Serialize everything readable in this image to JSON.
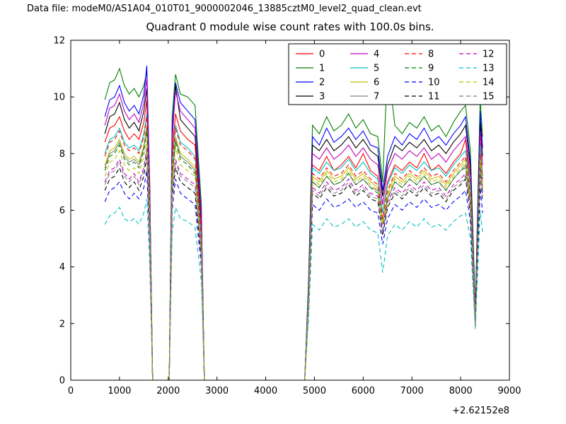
{
  "header": {
    "data_file_label": "Data file: modeM0/AS1A04_010T01_9000002046_13885cztM0_level2_quad_clean.evt"
  },
  "chart_data": {
    "type": "line",
    "title": "Quadrant 0 module wise count rates with 100.0s bins.",
    "xlabel": "",
    "ylabel": "",
    "x_offset_note": "+2.62152e8",
    "xlim": [
      0,
      9000
    ],
    "ylim": [
      0,
      12
    ],
    "xticks": [
      0,
      1000,
      2000,
      3000,
      4000,
      5000,
      6000,
      7000,
      8000,
      9000
    ],
    "yticks": [
      0,
      2,
      4,
      6,
      8,
      10,
      12
    ],
    "grid": false,
    "legend_position": "upper right",
    "legend_ncol": 4,
    "x": [
      700,
      800,
      900,
      1000,
      1100,
      1200,
      1300,
      1400,
      1500,
      1560,
      1620,
      1680,
      2020,
      2080,
      2150,
      2250,
      2400,
      2550,
      2680,
      2740,
      4800,
      4880,
      4960,
      5100,
      5250,
      5400,
      5550,
      5700,
      5850,
      6000,
      6150,
      6300,
      6400,
      6500,
      6650,
      6800,
      6950,
      7100,
      7250,
      7400,
      7550,
      7700,
      7850,
      8000,
      8100,
      8200,
      8300,
      8400,
      8450
    ],
    "series": [
      {
        "name": "0",
        "color": "#ff0000",
        "dash": false,
        "values": [
          8.4,
          8.9,
          9.0,
          9.3,
          8.8,
          8.5,
          8.7,
          8.5,
          9.1,
          9.9,
          6.2,
          0,
          0,
          8.0,
          9.4,
          8.8,
          8.5,
          8.3,
          5.3,
          0,
          0,
          3.0,
          7.6,
          7.4,
          7.9,
          7.4,
          7.6,
          7.9,
          7.5,
          8.0,
          7.4,
          7.2,
          5.9,
          7.0,
          7.6,
          7.4,
          7.7,
          7.5,
          8.0,
          7.4,
          7.6,
          7.3,
          7.7,
          8.0,
          8.5,
          6.8,
          2.1,
          8.4,
          7.2
        ]
      },
      {
        "name": "1",
        "color": "#008000",
        "dash": false,
        "values": [
          9.9,
          10.5,
          10.6,
          11.0,
          10.4,
          10.1,
          10.3,
          10.0,
          10.4,
          10.9,
          7.0,
          0,
          0,
          9.3,
          10.8,
          10.1,
          10.0,
          9.7,
          6.2,
          0,
          0,
          3.6,
          9.0,
          8.7,
          9.3,
          8.8,
          9.0,
          9.4,
          8.9,
          9.2,
          8.7,
          8.6,
          7.0,
          11.2,
          9.0,
          8.7,
          9.1,
          8.9,
          9.3,
          8.8,
          9.0,
          8.6,
          9.1,
          9.5,
          9.7,
          8.1,
          2.5,
          9.9,
          8.6
        ]
      },
      {
        "name": "2",
        "color": "#0000ff",
        "dash": false,
        "values": [
          9.3,
          9.9,
          10.0,
          10.4,
          9.8,
          9.5,
          9.7,
          9.4,
          10.1,
          11.1,
          6.9,
          0,
          0,
          8.9,
          10.5,
          9.8,
          9.5,
          9.2,
          5.9,
          0,
          0,
          3.4,
          8.6,
          8.3,
          8.9,
          8.4,
          8.6,
          8.9,
          8.5,
          8.8,
          8.3,
          8.2,
          6.7,
          7.9,
          8.6,
          8.3,
          8.7,
          8.5,
          8.9,
          8.4,
          8.6,
          8.3,
          8.7,
          9.0,
          9.3,
          7.7,
          2.4,
          9.5,
          8.2
        ]
      },
      {
        "name": "3",
        "color": "#000000",
        "dash": false,
        "values": [
          8.7,
          9.3,
          9.4,
          9.8,
          9.2,
          8.9,
          9.1,
          8.8,
          9.5,
          10.3,
          6.5,
          0,
          0,
          8.4,
          10.4,
          9.2,
          8.9,
          8.6,
          5.6,
          0,
          0,
          3.3,
          8.3,
          8.1,
          8.5,
          8.1,
          8.3,
          8.6,
          8.2,
          8.5,
          8.1,
          7.9,
          6.5,
          7.6,
          8.3,
          8.1,
          8.4,
          8.2,
          8.5,
          8.1,
          8.3,
          8.0,
          8.4,
          8.7,
          9.0,
          7.5,
          2.3,
          9.1,
          7.9
        ]
      },
      {
        "name": "4",
        "color": "#bf00bf",
        "dash": false,
        "values": [
          9.0,
          9.6,
          9.7,
          10.1,
          9.5,
          9.2,
          9.4,
          9.1,
          9.8,
          10.7,
          6.7,
          0,
          0,
          8.6,
          10.2,
          9.5,
          9.2,
          8.9,
          5.8,
          0,
          0,
          3.2,
          8.0,
          7.8,
          8.2,
          7.8,
          8.0,
          8.3,
          7.9,
          8.2,
          7.8,
          7.6,
          6.2,
          7.4,
          8.0,
          7.8,
          8.1,
          7.9,
          8.2,
          7.8,
          8.0,
          7.7,
          8.1,
          8.4,
          8.6,
          7.2,
          2.2,
          8.8,
          7.6
        ]
      },
      {
        "name": "5",
        "color": "#00bfbf",
        "dash": false,
        "values": [
          8.0,
          8.5,
          8.6,
          8.9,
          8.4,
          8.2,
          8.3,
          8.1,
          8.7,
          9.4,
          6.0,
          0,
          0,
          7.7,
          9.0,
          8.4,
          8.2,
          7.9,
          5.1,
          0,
          0,
          3.0,
          7.5,
          7.3,
          7.7,
          7.4,
          7.5,
          7.8,
          7.4,
          7.7,
          7.3,
          7.1,
          5.9,
          6.9,
          7.5,
          7.3,
          7.6,
          7.4,
          7.7,
          7.4,
          7.5,
          7.2,
          7.6,
          7.9,
          8.1,
          6.8,
          2.1,
          8.3,
          7.1
        ]
      },
      {
        "name": "6",
        "color": "#bfbf00",
        "dash": false,
        "values": [
          7.6,
          8.1,
          8.2,
          8.5,
          8.0,
          7.8,
          7.9,
          7.7,
          8.3,
          9.0,
          5.7,
          0,
          0,
          7.3,
          8.6,
          8.0,
          7.8,
          7.5,
          4.9,
          0,
          0,
          2.9,
          7.2,
          7.0,
          7.4,
          7.1,
          7.2,
          7.5,
          7.1,
          7.3,
          7.0,
          6.8,
          5.6,
          6.6,
          7.2,
          7.0,
          7.3,
          7.1,
          7.4,
          7.1,
          7.2,
          6.9,
          7.3,
          7.6,
          7.8,
          6.5,
          2.0,
          8.0,
          6.8
        ]
      },
      {
        "name": "7",
        "color": "#7f7f7f",
        "dash": false,
        "values": [
          7.5,
          8.0,
          8.1,
          8.4,
          7.9,
          7.7,
          7.8,
          7.6,
          8.2,
          8.9,
          5.6,
          0,
          0,
          7.2,
          8.5,
          7.9,
          7.7,
          7.4,
          4.8,
          0,
          0,
          2.8,
          7.0,
          6.8,
          7.2,
          6.9,
          7.0,
          7.3,
          6.9,
          7.1,
          6.8,
          6.7,
          5.5,
          6.4,
          7.0,
          6.8,
          7.1,
          6.9,
          7.2,
          6.9,
          7.0,
          6.7,
          7.1,
          7.4,
          7.6,
          6.3,
          2.0,
          7.7,
          6.7
        ]
      },
      {
        "name": "8",
        "color": "#ff0000",
        "dash": true,
        "values": [
          7.9,
          8.4,
          8.5,
          8.8,
          8.3,
          8.1,
          8.2,
          8.0,
          8.6,
          9.3,
          5.9,
          0,
          0,
          7.6,
          8.9,
          8.3,
          8.1,
          7.8,
          5.0,
          0,
          0,
          2.9,
          7.3,
          7.1,
          7.5,
          7.2,
          7.3,
          7.6,
          7.2,
          7.4,
          7.1,
          6.9,
          5.7,
          6.7,
          7.3,
          7.1,
          7.4,
          7.2,
          7.5,
          7.2,
          7.3,
          7.0,
          7.4,
          7.7,
          7.9,
          6.6,
          2.0,
          8.0,
          6.9
        ]
      },
      {
        "name": "9",
        "color": "#008000",
        "dash": true,
        "values": [
          7.4,
          7.9,
          8.0,
          8.3,
          7.8,
          7.6,
          7.7,
          7.5,
          8.1,
          8.8,
          5.5,
          0,
          0,
          7.1,
          8.4,
          7.8,
          7.6,
          7.3,
          4.7,
          0,
          0,
          2.8,
          7.0,
          6.8,
          7.2,
          6.9,
          7.0,
          7.3,
          6.9,
          7.1,
          6.8,
          6.6,
          5.5,
          6.4,
          7.0,
          6.8,
          7.1,
          6.9,
          7.2,
          6.9,
          7.0,
          6.7,
          7.1,
          7.4,
          7.5,
          6.3,
          1.9,
          7.7,
          6.6
        ]
      },
      {
        "name": "10",
        "color": "#0000ff",
        "dash": true,
        "values": [
          6.3,
          6.7,
          6.8,
          7.0,
          6.6,
          6.4,
          6.6,
          6.4,
          6.8,
          7.4,
          4.7,
          0,
          0,
          6.0,
          7.1,
          6.6,
          6.4,
          6.2,
          4.0,
          0,
          0,
          2.5,
          6.2,
          6.0,
          6.4,
          6.1,
          6.2,
          6.4,
          6.1,
          6.3,
          6.0,
          5.9,
          4.8,
          5.7,
          6.2,
          6.0,
          6.3,
          6.1,
          6.4,
          6.1,
          6.2,
          6.0,
          6.3,
          6.5,
          6.7,
          5.6,
          1.9,
          6.8,
          5.9
        ]
      },
      {
        "name": "11",
        "color": "#000000",
        "dash": true,
        "values": [
          6.7,
          7.1,
          7.2,
          7.5,
          7.0,
          6.8,
          7.0,
          6.7,
          7.2,
          7.9,
          5.0,
          0,
          0,
          6.4,
          7.5,
          7.0,
          6.8,
          6.6,
          4.3,
          0,
          0,
          2.6,
          6.6,
          6.4,
          6.8,
          6.5,
          6.6,
          6.9,
          6.5,
          6.7,
          6.4,
          6.3,
          5.1,
          6.1,
          6.6,
          6.4,
          6.7,
          6.5,
          6.8,
          6.5,
          6.6,
          6.3,
          6.7,
          6.9,
          7.1,
          5.9,
          1.9,
          7.3,
          6.3
        ]
      },
      {
        "name": "12",
        "color": "#bf00bf",
        "dash": true,
        "values": [
          7.0,
          7.4,
          7.5,
          7.8,
          7.3,
          7.1,
          7.3,
          7.0,
          7.5,
          8.2,
          5.2,
          0,
          0,
          6.7,
          7.8,
          7.3,
          7.1,
          6.9,
          4.4,
          0,
          0,
          2.7,
          6.8,
          6.6,
          7.0,
          6.7,
          6.8,
          7.1,
          6.7,
          6.9,
          6.6,
          6.5,
          5.3,
          6.3,
          6.8,
          6.6,
          6.9,
          6.7,
          7.0,
          6.7,
          6.8,
          6.5,
          6.9,
          7.1,
          7.3,
          6.1,
          1.9,
          7.5,
          6.5
        ]
      },
      {
        "name": "13",
        "color": "#00bfbf",
        "dash": true,
        "values": [
          5.5,
          5.8,
          5.9,
          6.1,
          5.7,
          5.6,
          5.7,
          5.5,
          5.9,
          6.4,
          4.1,
          0,
          0,
          5.2,
          6.1,
          5.7,
          5.6,
          5.4,
          3.5,
          0,
          0,
          2.2,
          5.5,
          5.3,
          5.7,
          5.4,
          5.5,
          5.7,
          5.4,
          5.6,
          5.3,
          5.2,
          3.8,
          5.1,
          5.5,
          5.3,
          5.6,
          5.4,
          5.7,
          5.4,
          5.5,
          5.3,
          5.6,
          5.8,
          5.9,
          5.0,
          1.8,
          6.0,
          5.2
        ]
      },
      {
        "name": "14",
        "color": "#bfbf00",
        "dash": true,
        "values": [
          7.2,
          7.7,
          7.8,
          8.1,
          7.6,
          7.4,
          7.5,
          7.3,
          7.9,
          8.5,
          5.4,
          0,
          0,
          6.9,
          8.2,
          7.6,
          7.4,
          7.2,
          4.6,
          0,
          0,
          2.8,
          7.1,
          6.9,
          7.3,
          7.0,
          7.1,
          7.4,
          7.0,
          7.2,
          6.9,
          6.7,
          5.5,
          6.5,
          7.1,
          6.9,
          7.2,
          7.0,
          7.3,
          7.0,
          7.1,
          6.8,
          7.2,
          7.5,
          7.7,
          6.4,
          2.0,
          7.8,
          6.8
        ]
      },
      {
        "name": "15",
        "color": "#7f7f7f",
        "dash": true,
        "values": [
          6.9,
          7.3,
          7.4,
          7.7,
          7.2,
          7.0,
          7.2,
          6.9,
          7.4,
          8.1,
          5.1,
          0,
          0,
          6.6,
          7.7,
          7.2,
          7.0,
          6.8,
          4.4,
          0,
          0,
          2.7,
          6.7,
          6.5,
          6.9,
          6.6,
          6.7,
          7.0,
          6.6,
          6.8,
          6.5,
          6.4,
          5.2,
          6.2,
          6.7,
          6.5,
          6.8,
          6.6,
          6.9,
          6.6,
          6.7,
          6.4,
          6.8,
          7.0,
          7.2,
          6.0,
          1.9,
          7.4,
          6.4
        ]
      }
    ]
  }
}
